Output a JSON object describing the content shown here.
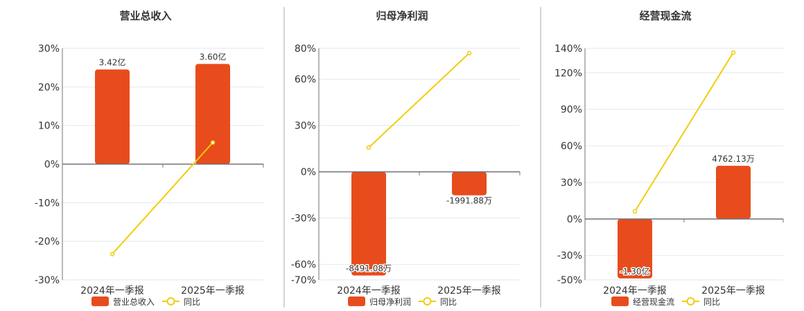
{
  "colors": {
    "bar": "#e84c1c",
    "line": "#f2cc0c",
    "grid": "#e3e7f0",
    "axis": "#6e7079",
    "text": "#333333",
    "separator": "#aaaaaa"
  },
  "chart_data": [
    {
      "type": "bar+line",
      "title": "营业总收入",
      "categories": [
        "2024年一季报",
        "2025年一季报"
      ],
      "bar_series": {
        "name": "营业总收入",
        "values": [
          3.42,
          3.6
        ],
        "unit": "亿",
        "labels": [
          "3.42亿",
          "3.60亿"
        ]
      },
      "line_series": {
        "name": "同比",
        "values": [
          -23.3,
          5.6
        ],
        "unit": "%"
      },
      "y_ticks": [
        30,
        20,
        10,
        0,
        -10,
        -20,
        -30
      ],
      "ylim": [
        -30,
        30
      ],
      "grid": true,
      "legend_position": "bottom"
    },
    {
      "type": "bar+line",
      "title": "归母净利润",
      "categories": [
        "2024年一季报",
        "2025年一季报"
      ],
      "bar_series": {
        "name": "归母净利润",
        "values": [
          -8491.08,
          -1991.88
        ],
        "unit": "万",
        "labels": [
          "-8491.08万",
          "-1991.88万"
        ]
      },
      "line_series": {
        "name": "同比",
        "values": [
          15.7,
          76.9
        ],
        "unit": "%"
      },
      "y_ticks": [
        80,
        60,
        30,
        0,
        -30,
        -60,
        -70
      ],
      "ylim": [
        -70,
        80
      ],
      "grid": true,
      "legend_position": "bottom"
    },
    {
      "type": "bar+line",
      "title": "经营现金流",
      "categories": [
        "2024年一季报",
        "2025年一季报"
      ],
      "bar_series": {
        "name": "经营现金流",
        "values": [
          -13000,
          4762.13
        ],
        "unit": "万",
        "labels": [
          "-1.30亿",
          "4762.13万"
        ]
      },
      "line_series": {
        "name": "同比",
        "values": [
          6.2,
          136.6
        ],
        "unit": "%"
      },
      "y_ticks": [
        140,
        120,
        90,
        60,
        30,
        0,
        -30,
        -50
      ],
      "ylim": [
        -50,
        140
      ],
      "grid": true,
      "legend_position": "bottom"
    }
  ]
}
